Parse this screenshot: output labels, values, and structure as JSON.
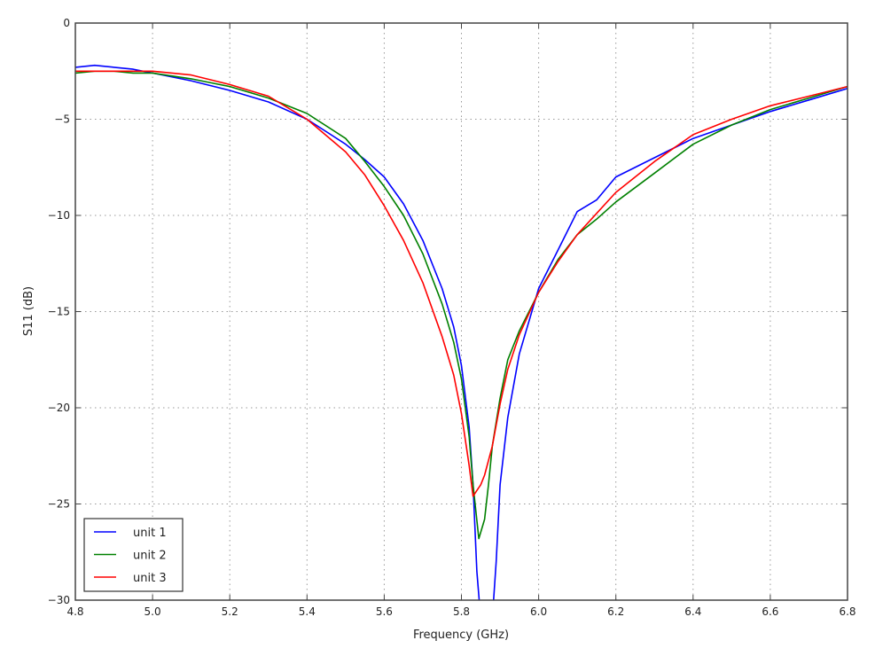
{
  "chart_data": {
    "type": "line",
    "title": "",
    "xlabel": "Frequency (GHz)",
    "ylabel": "S11 (dB)",
    "xlim": [
      4.8,
      6.8
    ],
    "ylim": [
      -30,
      0
    ],
    "xticks": [
      "4.8",
      "5.0",
      "5.2",
      "5.4",
      "5.6",
      "5.8",
      "6.0",
      "6.2",
      "6.4",
      "6.6",
      "6.8"
    ],
    "yticks": [
      "0",
      "−5",
      "−10",
      "−15",
      "−20",
      "−25",
      "−30"
    ],
    "grid": true,
    "legend_position": "lower left",
    "series": [
      {
        "name": "unit 1",
        "color": "#0000ff",
        "x": [
          4.8,
          4.85,
          4.9,
          4.95,
          5.0,
          5.1,
          5.2,
          5.3,
          5.4,
          5.5,
          5.55,
          5.6,
          5.65,
          5.7,
          5.75,
          5.78,
          5.8,
          5.82,
          5.83,
          5.84,
          5.85,
          5.88,
          5.89,
          5.9,
          5.92,
          5.95,
          6.0,
          6.05,
          6.1,
          6.15,
          6.2,
          6.3,
          6.4,
          6.5,
          6.6,
          6.7,
          6.8
        ],
        "y": [
          -2.3,
          -2.2,
          -2.3,
          -2.4,
          -2.6,
          -3.0,
          -3.5,
          -4.1,
          -5.0,
          -6.3,
          -7.1,
          -8.0,
          -9.4,
          -11.3,
          -13.8,
          -15.8,
          -17.8,
          -21.0,
          -24.0,
          -28.5,
          -31.0,
          -31.0,
          -28.0,
          -24.0,
          -20.5,
          -17.2,
          -13.8,
          -11.8,
          -9.8,
          -9.2,
          -8.0,
          -7.0,
          -6.0,
          -5.3,
          -4.6,
          -4.0,
          -3.4
        ]
      },
      {
        "name": "unit 2",
        "color": "#008000",
        "x": [
          4.8,
          4.85,
          4.9,
          4.95,
          5.0,
          5.1,
          5.2,
          5.3,
          5.4,
          5.5,
          5.55,
          5.6,
          5.65,
          5.7,
          5.75,
          5.78,
          5.8,
          5.82,
          5.83,
          5.845,
          5.86,
          5.87,
          5.88,
          5.9,
          5.92,
          5.95,
          6.0,
          6.05,
          6.1,
          6.15,
          6.2,
          6.3,
          6.4,
          6.5,
          6.6,
          6.7,
          6.8
        ],
        "y": [
          -2.6,
          -2.5,
          -2.5,
          -2.6,
          -2.6,
          -2.9,
          -3.3,
          -3.9,
          -4.7,
          -6.0,
          -7.2,
          -8.5,
          -10.0,
          -12.0,
          -14.6,
          -16.6,
          -18.5,
          -21.5,
          -24.0,
          -26.8,
          -25.8,
          -24.0,
          -22.0,
          -19.5,
          -17.5,
          -16.0,
          -14.0,
          -12.3,
          -11.0,
          -10.2,
          -9.3,
          -7.8,
          -6.3,
          -5.3,
          -4.5,
          -3.9,
          -3.3
        ]
      },
      {
        "name": "unit 3",
        "color": "#ff0000",
        "x": [
          4.8,
          4.85,
          4.9,
          4.95,
          5.0,
          5.1,
          5.2,
          5.3,
          5.4,
          5.5,
          5.55,
          5.6,
          5.65,
          5.7,
          5.75,
          5.78,
          5.8,
          5.82,
          5.83,
          5.84,
          5.85,
          5.86,
          5.88,
          5.9,
          5.92,
          5.95,
          6.0,
          6.05,
          6.1,
          6.15,
          6.2,
          6.3,
          6.4,
          6.5,
          6.6,
          6.7,
          6.8
        ],
        "y": [
          -2.5,
          -2.5,
          -2.5,
          -2.5,
          -2.5,
          -2.7,
          -3.2,
          -3.8,
          -5.0,
          -6.7,
          -7.9,
          -9.5,
          -11.3,
          -13.5,
          -16.3,
          -18.3,
          -20.3,
          -23.0,
          -24.6,
          -24.3,
          -24.0,
          -23.5,
          -22.0,
          -19.8,
          -18.0,
          -16.2,
          -14.0,
          -12.4,
          -11.0,
          -9.9,
          -8.8,
          -7.2,
          -5.8,
          -5.0,
          -4.3,
          -3.8,
          -3.3
        ]
      }
    ]
  }
}
